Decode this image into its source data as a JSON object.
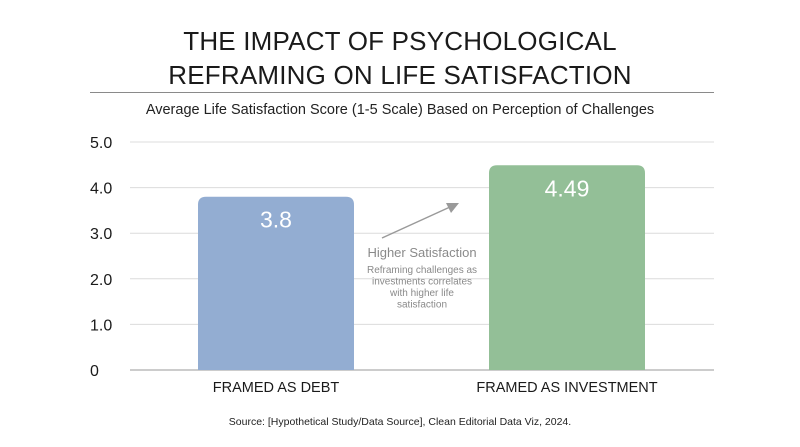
{
  "header": {
    "title_line1": "THE IMPACT OF PSYCHOLOGICAL",
    "title_line2": "REFRAMING ON LIFE SATISFACTION",
    "subtitle": "Average Life Satisfaction Score (1-5 Scale) Based on Perception of Challenges"
  },
  "chart_data": {
    "type": "bar",
    "categories": [
      "FRAMED AS DEBT",
      "FRAMED AS INVESTMENT"
    ],
    "values": [
      3.8,
      4.49
    ],
    "value_labels": [
      "3.8",
      "4.49"
    ],
    "ylim": [
      0,
      5
    ],
    "yticks": [
      0,
      1,
      2,
      3,
      4,
      5
    ],
    "ytick_labels": [
      "0",
      "1.0",
      "2.0",
      "3.0",
      "4.0",
      "5.0"
    ],
    "grid": true,
    "colors": [
      "#93add2",
      "#93bf97"
    ],
    "annotation": {
      "title": "Higher Satisfaction",
      "lines": [
        "Reframing challenges as",
        "investments correlates",
        "with higher life",
        "satisfaction"
      ]
    }
  },
  "footer": {
    "source": "Source: [Hypothetical Study/Data Source], Clean Editorial Data Viz, 2024."
  }
}
